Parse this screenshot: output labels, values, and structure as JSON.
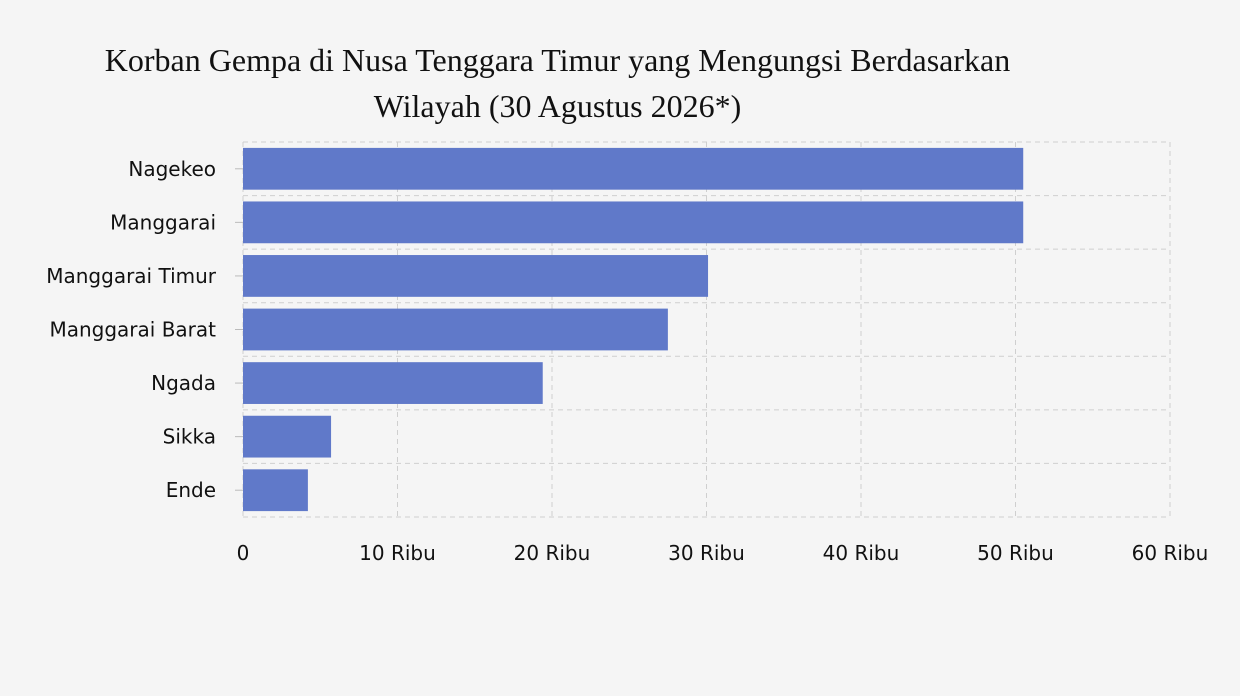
{
  "chart_data": {
    "type": "bar",
    "orientation": "horizontal",
    "title_lines": [
      "Korban Gempa di Nusa Tenggara Timur yang Mengungsi Berdasarkan",
      "Wilayah (30 Agustus 2026*)"
    ],
    "categories": [
      "Nagekeo",
      "Manggarai",
      "Manggarai Timur",
      "Manggarai Barat",
      "Ngada",
      "Sikka",
      "Ende"
    ],
    "values": [
      50500,
      50500,
      30100,
      27500,
      19400,
      5700,
      4200
    ],
    "x_ticks": [
      0,
      10000,
      20000,
      30000,
      40000,
      50000,
      60000
    ],
    "x_tick_labels": [
      "0",
      "10 Ribu",
      "20 Ribu",
      "30 Ribu",
      "40 Ribu",
      "50 Ribu",
      "60 Ribu"
    ],
    "xlim": [
      0,
      60000
    ],
    "xlabel": "",
    "ylabel": "",
    "grid": true,
    "bar_color": "#6079c9"
  }
}
